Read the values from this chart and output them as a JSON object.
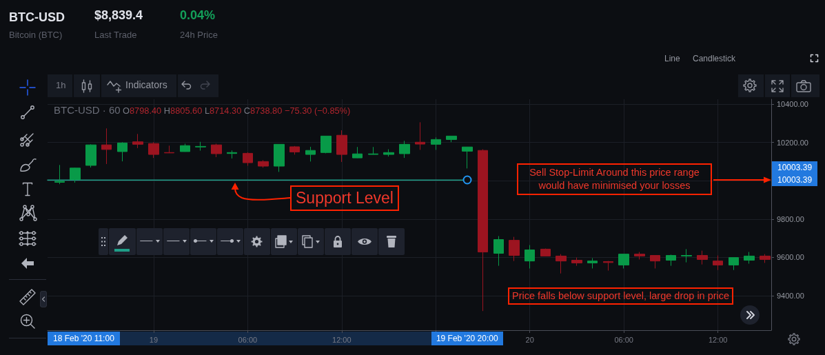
{
  "chart_data": {
    "type": "candlestick",
    "title": "BTC-USD",
    "subtitle": "Bitcoin (BTC)",
    "x": [
      "2020-02-18T18:00",
      "2020-02-18T19:00",
      "2020-02-18T20:00",
      "2020-02-18T21:00",
      "2020-02-18T22:00",
      "2020-02-18T23:00",
      "2020-02-19T00:00",
      "2020-02-19T01:00",
      "2020-02-19T02:00",
      "2020-02-19T03:00",
      "2020-02-19T04:00",
      "2020-02-19T05:00",
      "2020-02-19T06:00",
      "2020-02-19T07:00",
      "2020-02-19T08:00",
      "2020-02-19T09:00",
      "2020-02-19T10:00",
      "2020-02-19T11:00",
      "2020-02-19T12:00",
      "2020-02-19T13:00",
      "2020-02-19T14:00",
      "2020-02-19T15:00",
      "2020-02-19T16:00",
      "2020-02-19T17:00",
      "2020-02-19T18:00",
      "2020-02-19T19:00",
      "2020-02-19T20:00",
      "2020-02-19T21:00",
      "2020-02-19T22:00",
      "2020-02-19T23:00",
      "2020-02-20T00:00",
      "2020-02-20T01:00",
      "2020-02-20T02:00",
      "2020-02-20T03:00",
      "2020-02-20T04:00",
      "2020-02-20T05:00",
      "2020-02-20T06:00",
      "2020-02-20T07:00",
      "2020-02-20T08:00",
      "2020-02-20T09:00",
      "2020-02-20T10:00",
      "2020-02-20T11:00",
      "2020-02-20T12:00",
      "2020-02-20T13:00",
      "2020-02-20T14:00",
      "2020-02-20T15:00"
    ],
    "ohlc": [
      [
        9992,
        10082,
        9982,
        9997
      ],
      [
        10006,
        10068,
        9990,
        10066
      ],
      [
        10080,
        10190,
        10069,
        10187
      ],
      [
        10187,
        10273,
        10087,
        10163
      ],
      [
        10152,
        10201,
        10101,
        10197
      ],
      [
        10203,
        10244,
        10170,
        10190
      ],
      [
        10194,
        10201,
        10119,
        10137
      ],
      [
        10147,
        10183,
        10144,
        10145
      ],
      [
        10152,
        10193,
        10151,
        10183
      ],
      [
        10176,
        10203,
        10157,
        10179
      ],
      [
        10187,
        10193,
        10123,
        10141
      ],
      [
        10142,
        10158,
        10116,
        10147
      ],
      [
        10143,
        10148,
        10078,
        10094
      ],
      [
        10100,
        10107,
        10068,
        10076
      ],
      [
        10076,
        10191,
        10046,
        10190
      ],
      [
        10177,
        10181,
        10136,
        10150
      ],
      [
        10137,
        10177,
        10100,
        10158
      ],
      [
        10147,
        10234,
        10143,
        10233
      ],
      [
        10237,
        10263,
        10098,
        10137
      ],
      [
        10119,
        10176,
        10118,
        10140
      ],
      [
        10137,
        10176,
        10136,
        10140
      ],
      [
        10137,
        10164,
        10126,
        10147
      ],
      [
        10141,
        10208,
        10119,
        10190
      ],
      [
        10201,
        10305,
        10161,
        10191
      ],
      [
        10190,
        10226,
        10161,
        10215
      ],
      [
        10215,
        10234,
        10201,
        10233
      ],
      [
        10154,
        10177,
        10064,
        10176
      ],
      [
        10158,
        10164,
        9320,
        9628
      ],
      [
        9621,
        9711,
        9556,
        9693
      ],
      [
        9689,
        9707,
        9581,
        9610
      ],
      [
        9581,
        9664,
        9542,
        9639
      ],
      [
        9643,
        9646,
        9606,
        9607
      ],
      [
        9607,
        9617,
        9516,
        9581
      ],
      [
        9585,
        9599,
        9556,
        9571
      ],
      [
        9571,
        9596,
        9542,
        9581
      ],
      [
        9578,
        9581,
        9531,
        9573
      ],
      [
        9560,
        9618,
        9542,
        9617
      ],
      [
        9617,
        9628,
        9589,
        9607
      ],
      [
        9610,
        9611,
        9542,
        9581
      ],
      [
        9585,
        9614,
        9556,
        9610
      ],
      [
        9607,
        9643,
        9574,
        9610
      ],
      [
        9610,
        9635,
        9563,
        9589
      ],
      [
        9581,
        9610,
        9534,
        9560
      ],
      [
        9560,
        9600,
        9534,
        9599
      ],
      [
        9585,
        9628,
        9567,
        9607
      ],
      [
        9607,
        9617,
        9571,
        9589
      ]
    ],
    "colors": [
      "#089a48",
      "#089a48",
      "#089a48",
      "#9c1420",
      "#089a48",
      "#9c1420",
      "#9c1420",
      "#9c1420",
      "#089a48",
      "#089a48",
      "#9c1420",
      "#089a48",
      "#9c1420",
      "#9c1420",
      "#089a48",
      "#9c1420",
      "#089a48",
      "#089a48",
      "#9c1420",
      "#089a48",
      "#089a48",
      "#089a48",
      "#089a48",
      "#9c1420",
      "#089a48",
      "#089a48",
      "#089a48",
      "#9c1420",
      "#089a48",
      "#9c1420",
      "#089a48",
      "#9c1420",
      "#9c1420",
      "#9c1420",
      "#089a48",
      "#9c1420",
      "#089a48",
      "#9c1420",
      "#9c1420",
      "#089a48",
      "#089a48",
      "#9c1420",
      "#9c1420",
      "#089a48",
      "#089a48",
      "#9c1420"
    ],
    "series": [
      {
        "type": "line",
        "color": "#1f9e88",
        "x": [
          "2020-02-18T17:14",
          "2020-02-19T20:00"
        ],
        "values": [
          10003.39,
          10003.39
        ]
      }
    ],
    "xlim": [
      "2020-02-18T17:14",
      "2020-02-20T15:24"
    ],
    "ylim": [
      9220,
      10425
    ],
    "xticks": [
      {
        "value": "2020-02-19T00:00",
        "label": "19"
      },
      {
        "value": "2020-02-19T06:00",
        "label": "06:00"
      },
      {
        "value": "2020-02-19T12:00",
        "label": "12:00"
      },
      {
        "value": "2020-02-19T18:00",
        "label": null
      },
      {
        "value": "2020-02-20T00:00",
        "label": "20"
      },
      {
        "value": "2020-02-20T06:00",
        "label": "06:00"
      },
      {
        "value": "2020-02-20T12:00",
        "label": "12:00"
      }
    ],
    "yticks": [
      {
        "value": 9400,
        "label": "9400.00"
      },
      {
        "value": 9600,
        "label": "9600.00"
      },
      {
        "value": 9800,
        "label": "9800.00"
      },
      {
        "value": 10000,
        "label": null
      },
      {
        "value": 10200,
        "label": "10200.00"
      },
      {
        "value": 10400,
        "label": "10400.00"
      }
    ],
    "grid": true,
    "annotations": [
      "$8,839.4",
      "Last Trade",
      "0.04%",
      "24h Price",
      "Line",
      "Candlestick",
      "1h",
      "Indicators",
      "BTC-USD · 60",
      "O8798.40 H8805.60 L8714.30 C8738.80 −75.30 (−0.85%)",
      "Support Level",
      "Sell Stop-Limit Around this price range would have minimised your losses",
      "Price falls below support level, large drop in price",
      "18 Feb '20 11:00",
      "19 Feb '20 20:00",
      "10003.39",
      "10003.39"
    ]
  }
}
